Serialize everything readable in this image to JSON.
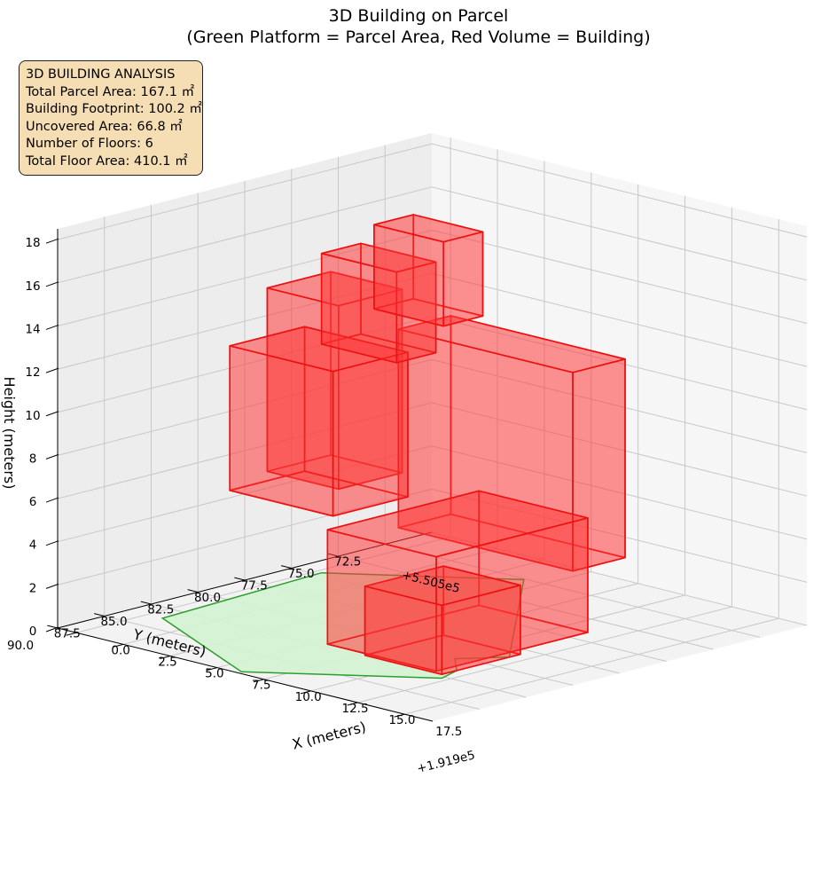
{
  "chart_data": {
    "type": "3d-polygons",
    "title": "3D Building on Parcel",
    "subtitle": "(Green Platform = Parcel Area, Red Volume = Building)",
    "xlabel": "X (meters)",
    "ylabel": "Y (meters)",
    "zlabel": "Height (meters)",
    "x_offset_label": "+1.919e5",
    "y_offset_label": "+5.505e5",
    "xlim": [
      -1,
      19
    ],
    "ylim": [
      70,
      90
    ],
    "zlim": [
      0,
      18.5
    ],
    "x_ticks": [
      0.0,
      2.5,
      5.0,
      7.5,
      10.0,
      12.5,
      15.0,
      17.5
    ],
    "y_ticks": [
      72.5,
      75.0,
      77.5,
      80.0,
      82.5,
      85.0,
      87.5,
      90.0
    ],
    "z_ticks": [
      0,
      2,
      4,
      6,
      8,
      10,
      12,
      14,
      16,
      18
    ],
    "x_tick_labels": [
      "0.0",
      "2.5",
      "5.0",
      "7.5",
      "10.0",
      "12.5",
      "15.0",
      "17.5"
    ],
    "y_tick_labels": [
      "72.5",
      "75.0",
      "77.5",
      "80.0",
      "82.5",
      "85.0",
      "87.5",
      "90.0"
    ],
    "z_tick_labels": [
      "0",
      "2",
      "4",
      "6",
      "8",
      "10",
      "12",
      "14",
      "16",
      "18"
    ],
    "grid": true,
    "parcel": {
      "name": "Parcel Area",
      "color": "#2ca02c",
      "fill": "#d4f2d4",
      "polygon": [
        [
          0.3,
          77.2
        ],
        [
          6.5,
          72.6
        ],
        [
          14.3,
          81.2
        ],
        [
          13.0,
          82.8
        ],
        [
          14.3,
          84.0
        ],
        [
          14.7,
          85.2
        ],
        [
          8.6,
          89.8
        ],
        [
          0.8,
          86.2
        ]
      ]
    },
    "building": {
      "name": "Building",
      "color": "#ee1111",
      "fill": "#ff3b3b",
      "blocks": [
        {
          "x": [
            4.0,
            13.3
          ],
          "y": [
            74.0,
            76.8
          ],
          "z": [
            2.8,
            12.0
          ]
        },
        {
          "x": [
            8.0,
            13.8
          ],
          "y": [
            76.5,
            84.6
          ],
          "z": [
            0.0,
            5.3
          ]
        },
        {
          "x": [
            10.2,
            14.3
          ],
          "y": [
            80.6,
            84.8
          ],
          "z": [
            0.0,
            3.2
          ]
        },
        {
          "x": [
            1.2,
            6.7
          ],
          "y": [
            79.0,
            83.0
          ],
          "z": [
            5.3,
            12.0
          ]
        },
        {
          "x": [
            0.2,
            4.0
          ],
          "y": [
            76.6,
            80.0
          ],
          "z": [
            5.3,
            13.8
          ]
        },
        {
          "x": [
            3.5,
            7.5
          ],
          "y": [
            78.3,
            80.4
          ],
          "z": [
            12.0,
            16.2
          ]
        },
        {
          "x": [
            5.3,
            9.0
          ],
          "y": [
            77.3,
            79.4
          ],
          "z": [
            13.8,
            17.7
          ]
        }
      ]
    },
    "info_box": {
      "heading": "3D BUILDING ANALYSIS",
      "lines": [
        "Total Parcel Area: 167.1 ㎡",
        "Building Footprint: 100.2 ㎡",
        "Uncovered Area: 66.8 ㎡",
        "Number of Floors: 6",
        "Total Floor Area: 410.1 ㎡"
      ]
    }
  }
}
